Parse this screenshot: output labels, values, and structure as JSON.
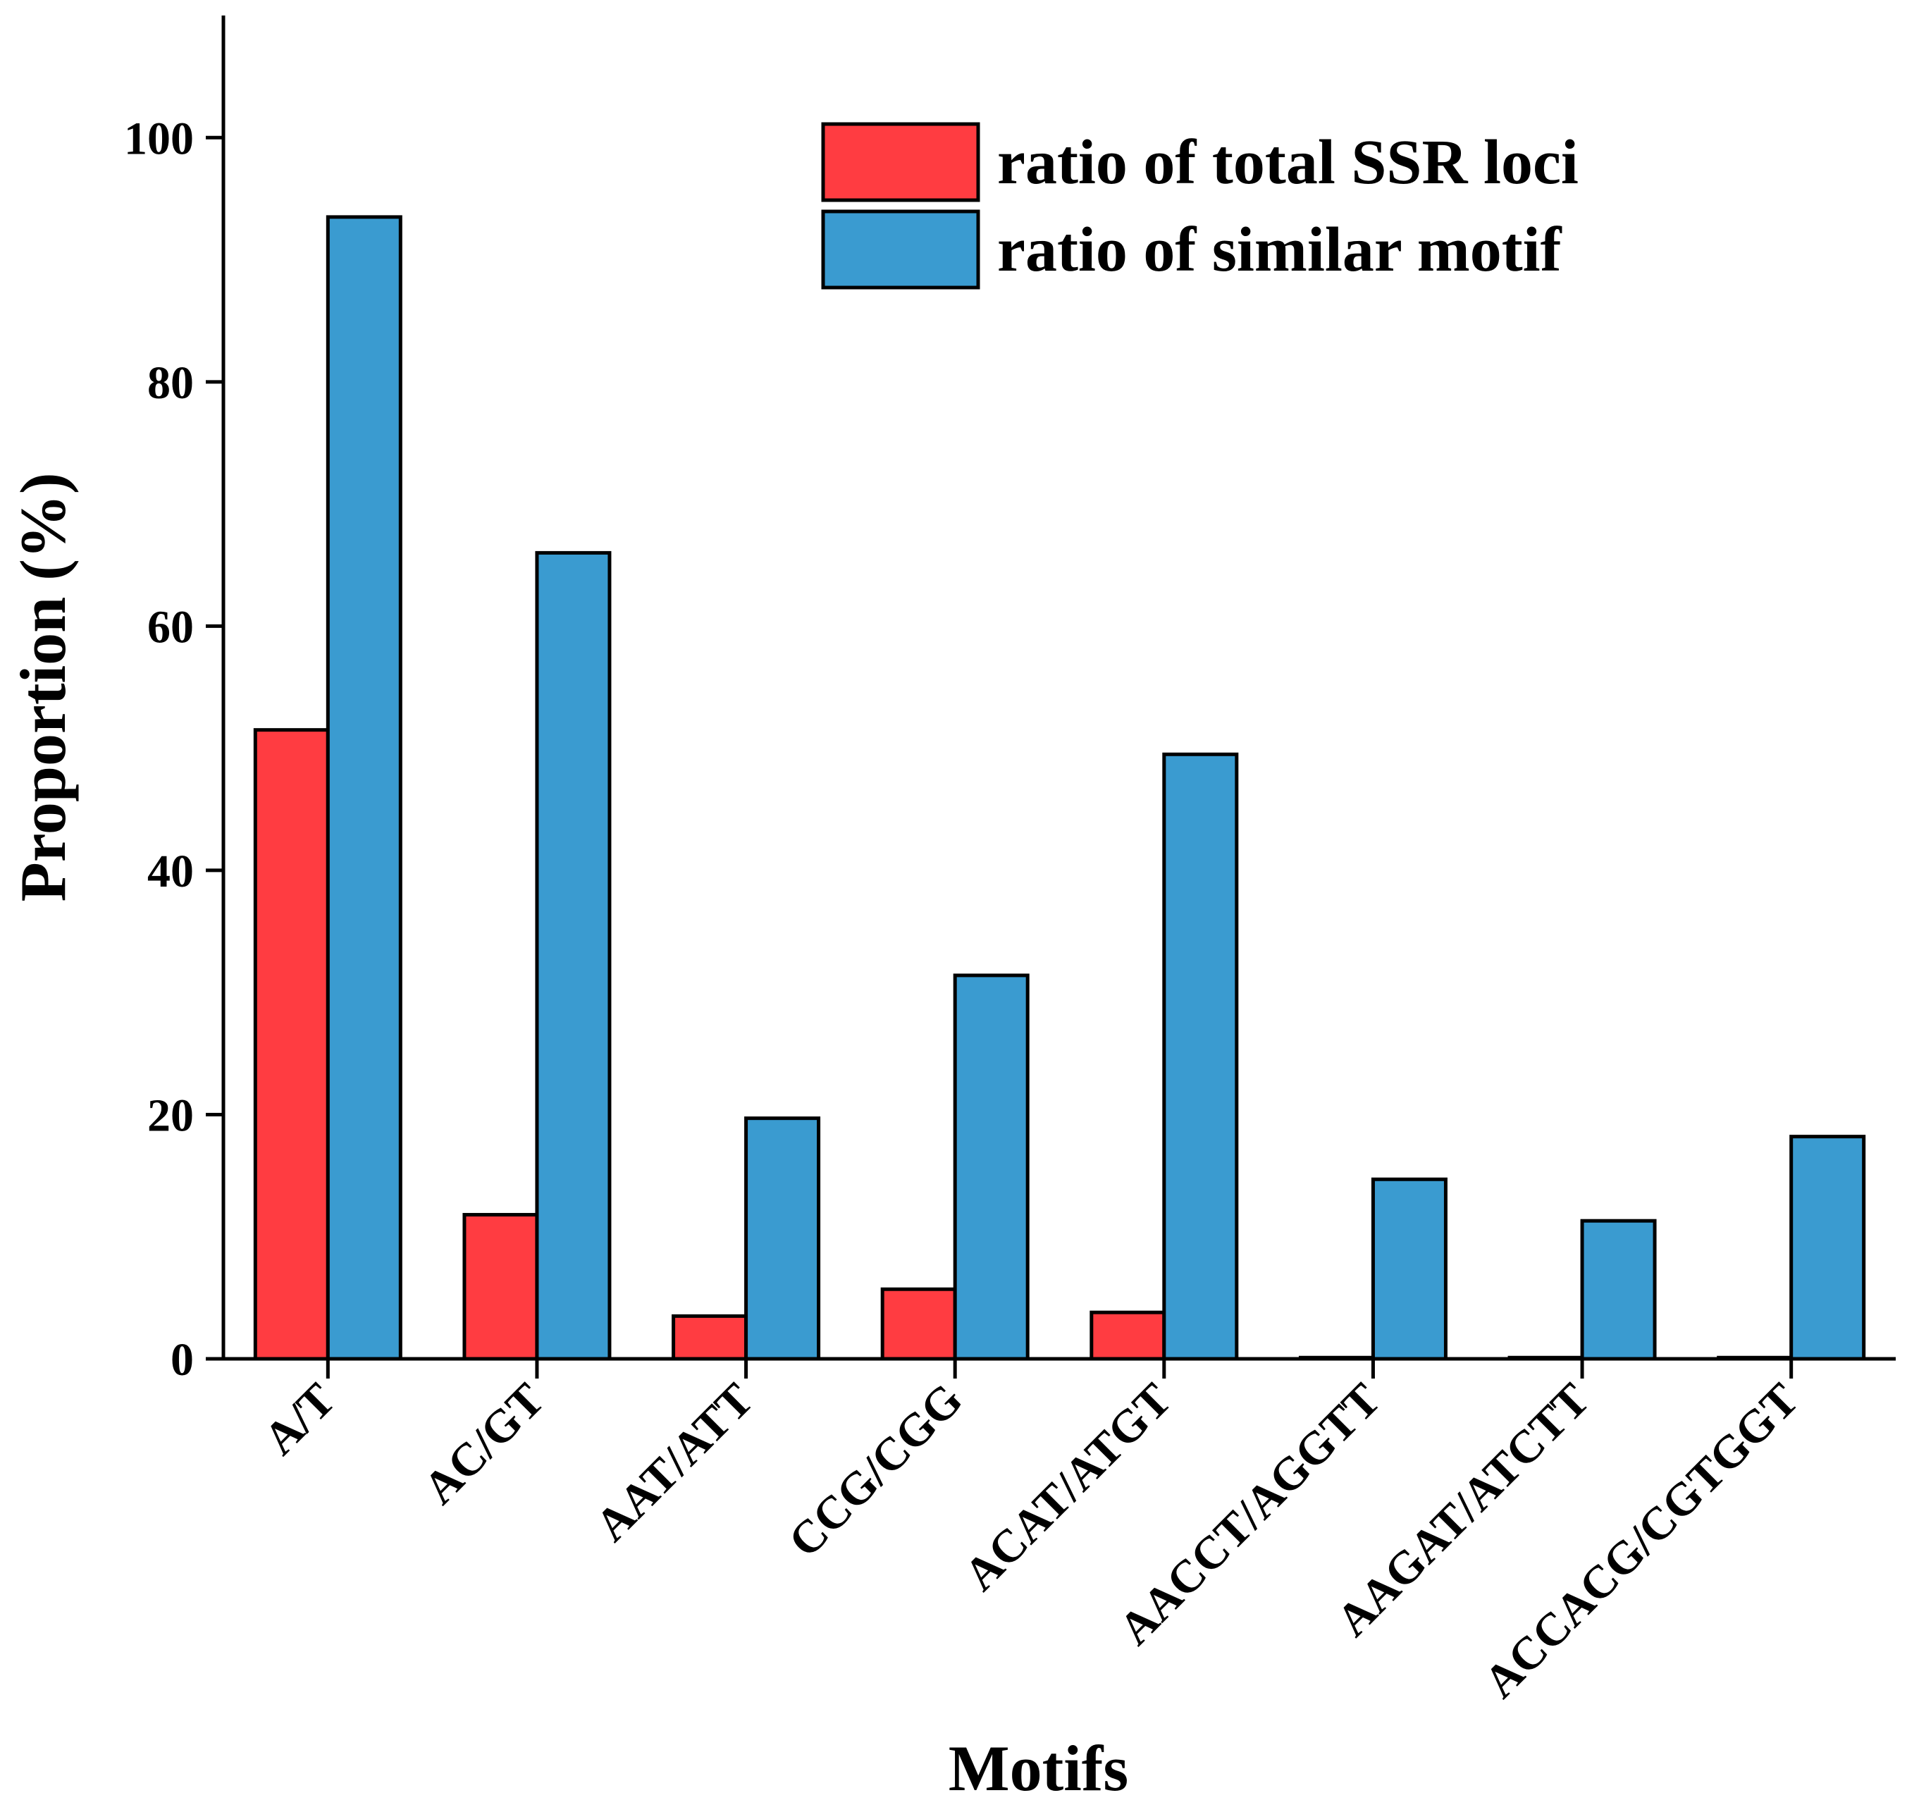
{
  "chart_data": {
    "type": "bar",
    "title": "",
    "xlabel": "Motifs",
    "ylabel": "Proportion (%)",
    "ylim": [
      0,
      110
    ],
    "yticks": [
      0,
      20,
      40,
      60,
      80,
      100
    ],
    "grid": false,
    "legend_position": "top-right",
    "categories": [
      "A/T",
      "AC/GT",
      "AAT/ATT",
      "CCG/CGG",
      "ACAT/ATGT",
      "AACCT/AGGTT",
      "AAGAT/ATCTT",
      "ACCACG/CGTGGT"
    ],
    "series": [
      {
        "name": "ratio of total SSR loci",
        "color": "#FF3C41",
        "values": [
          51.5,
          11.8,
          3.5,
          5.7,
          3.8,
          0.1,
          0.1,
          0.1
        ]
      },
      {
        "name": "ratio of similar motif",
        "color": "#3A9BD0",
        "values": [
          93.5,
          66.0,
          19.7,
          31.4,
          49.5,
          14.7,
          11.3,
          18.2
        ]
      }
    ]
  }
}
